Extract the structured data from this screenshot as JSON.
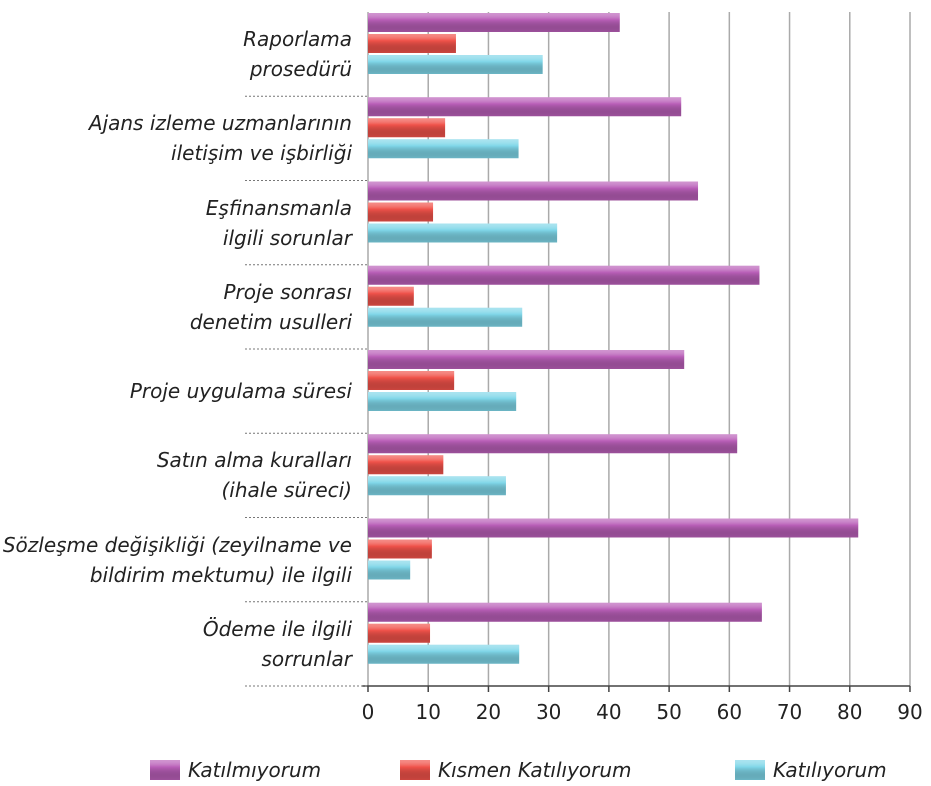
{
  "chart_data": {
    "type": "bar",
    "orientation": "horizontal",
    "categories": [
      "Raporlama\nprosedürü",
      "Ajans izleme uzmanlarının\niletişim ve işbirliği",
      "Eşfinansmanla\nilgili sorunlar",
      "Proje sonrası\ndenetim usulleri",
      "Proje uygulama süresi",
      "Satın alma kuralları\n(ihale süreci)",
      "Sözleşme değişikliği (zeyilname ve\nbildirim mektumu) ile ilgili",
      "Ödeme ile ilgili\nsorrunlar"
    ],
    "series": [
      {
        "name": "Katılmıyorum",
        "color": "#b95fb8",
        "values": [
          41.8,
          52,
          54.8,
          65,
          52.5,
          61.3,
          81.4,
          65.4
        ]
      },
      {
        "name": "Kısmen Katılıyorum",
        "color": "#f0524a",
        "values": [
          14.6,
          12.8,
          10.8,
          7.6,
          14.3,
          12.5,
          10.6,
          10.3
        ]
      },
      {
        "name": "Katılıyorum",
        "color": "#7fd6e8",
        "values": [
          29,
          25,
          31.4,
          25.6,
          24.6,
          22.9,
          7,
          25.1
        ]
      }
    ],
    "xlim": [
      0,
      90
    ],
    "xticks": [
      0,
      10,
      20,
      30,
      40,
      50,
      60,
      70,
      80,
      90
    ],
    "grid": true,
    "legend": "bottom"
  }
}
